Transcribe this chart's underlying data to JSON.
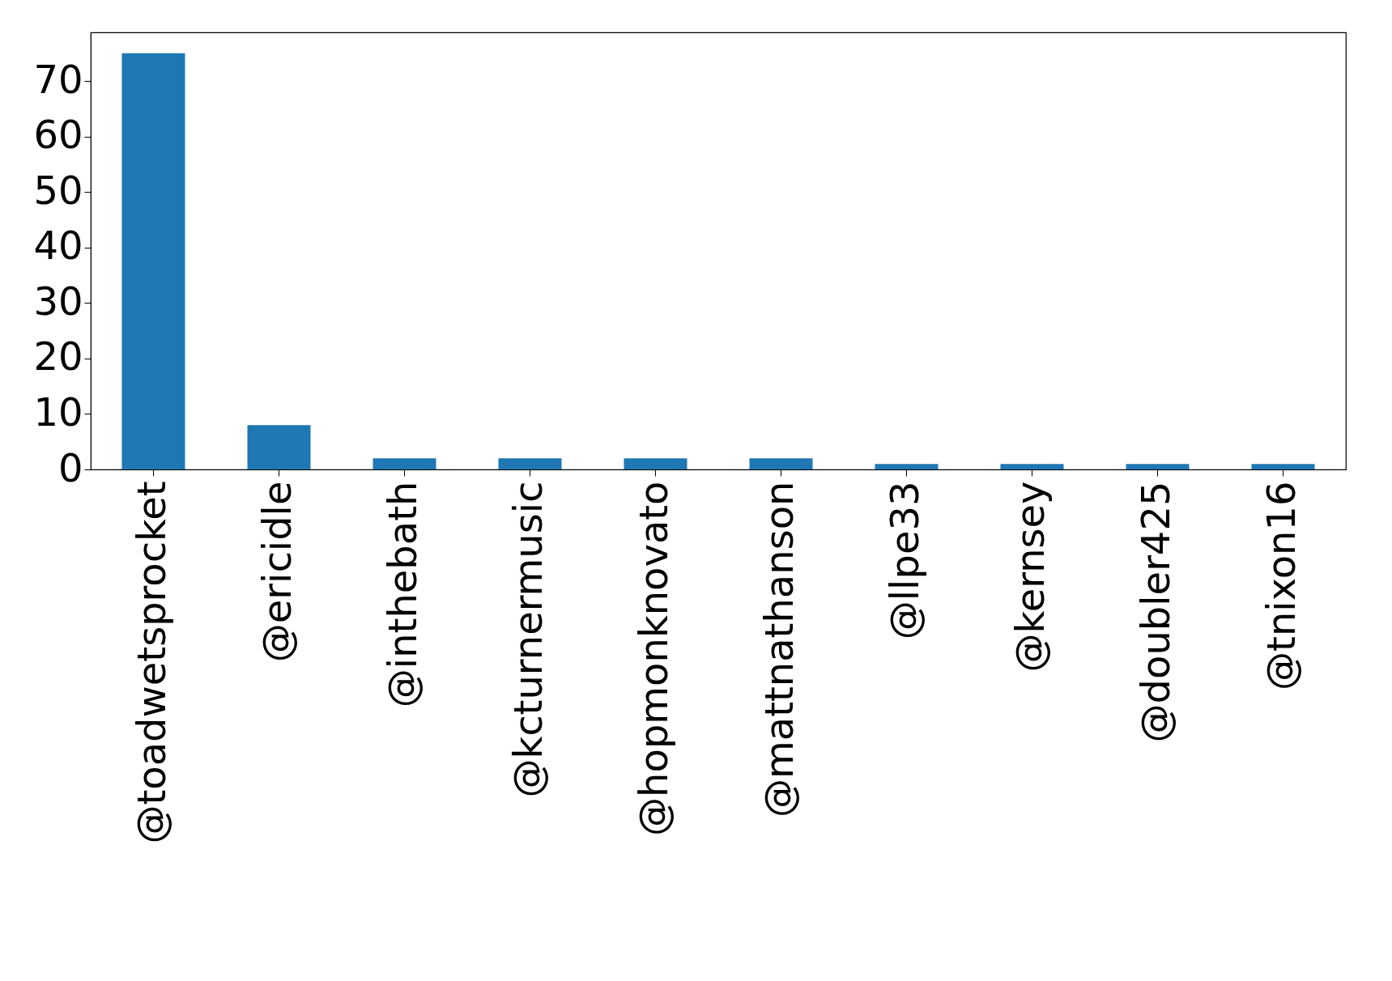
{
  "chart_data": {
    "type": "bar",
    "categories": [
      "@toadwetsprocket",
      "@ericidle",
      "@inthebath",
      "@kcturnermusic",
      "@hopmonknovato",
      "@mattnathanson",
      "@llpe33",
      "@kernsey",
      "@doubler425",
      "@tnixon16"
    ],
    "values": [
      75,
      8,
      2,
      2,
      2,
      2,
      1,
      1,
      1,
      1
    ],
    "color": "#1f77b4",
    "ylim": [
      0,
      78.75
    ],
    "yticks": [
      0,
      10,
      20,
      30,
      40,
      50,
      60,
      70
    ],
    "grid": false
  }
}
